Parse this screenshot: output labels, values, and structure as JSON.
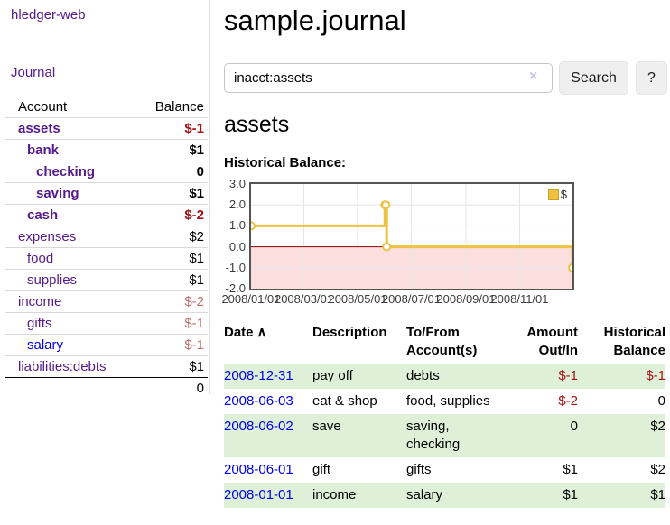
{
  "colors": {
    "accent_purple": "#551a8b",
    "link_blue": "#0000ee",
    "negative_red": "#a31515",
    "negative_dim_red": "#c26e6e",
    "row_stripe_green": "#dff0d8",
    "chart_line_gold": "#edc240",
    "chart_below_zero_fill": "#fbdfdf",
    "chart_zero_line": "#8b0000"
  },
  "sidebar": {
    "brand": "hledger-web",
    "journal_link": "Journal",
    "table_header": {
      "account": "Account",
      "balance": "Balance"
    },
    "accounts": [
      {
        "name": "assets",
        "balance": "$-1",
        "depth": 1
      },
      {
        "name": "bank",
        "balance": "$1",
        "depth": 2
      },
      {
        "name": "checking",
        "balance": "0",
        "depth": 3
      },
      {
        "name": "saving",
        "balance": "$1",
        "depth": 3
      },
      {
        "name": "cash",
        "balance": "$-2",
        "depth": 2
      },
      {
        "name": "expenses",
        "balance": "$2",
        "depth": 1
      },
      {
        "name": "food",
        "balance": "$1",
        "depth": 2
      },
      {
        "name": "supplies",
        "balance": "$1",
        "depth": 2
      },
      {
        "name": "income",
        "balance": "$-2",
        "depth": 1
      },
      {
        "name": "gifts",
        "balance": "$-1",
        "depth": 2
      },
      {
        "name": "salary",
        "balance": "$-1",
        "depth": 2
      },
      {
        "name": "liabilities:debts",
        "balance": "$1",
        "depth": 1
      }
    ],
    "total": "0"
  },
  "header": {
    "title": "sample.journal"
  },
  "search": {
    "value": "inacct:assets",
    "clear_icon": "×",
    "button_label": "Search",
    "help_label": "?"
  },
  "account_page": {
    "heading": "assets",
    "chart_title": "Historical Balance:"
  },
  "chart_data": {
    "type": "line",
    "title": "Historical Balance:",
    "step": true,
    "x_axis": {
      "range_days": [
        0,
        365
      ],
      "ticks": [
        {
          "label": "2008/01/01",
          "day": 0
        },
        {
          "label": "2008/03/01",
          "day": 60
        },
        {
          "label": "2008/05/01",
          "day": 121
        },
        {
          "label": "2008/07/01",
          "day": 182
        },
        {
          "label": "2008/09/01",
          "day": 244
        },
        {
          "label": "2008/11/01",
          "day": 305
        }
      ]
    },
    "y_axis": {
      "range": [
        -2,
        3
      ],
      "ticks": [
        3.0,
        2.0,
        1.0,
        0.0,
        -1.0,
        -2.0
      ]
    },
    "series": [
      {
        "name": "$",
        "color": "#edc240",
        "points": [
          {
            "date": "2008-01-01",
            "day": 0,
            "value": 1
          },
          {
            "date": "2008-06-01",
            "day": 152,
            "value": 2
          },
          {
            "date": "2008-06-02",
            "day": 153,
            "value": 2
          },
          {
            "date": "2008-06-03",
            "day": 154,
            "value": 0
          },
          {
            "date": "2008-12-31",
            "day": 365,
            "value": -1
          }
        ]
      }
    ],
    "markings": {
      "below_zero_fill": "#fbdfdf",
      "zero_line_color": "#8b0000"
    },
    "legend_position": "top-right",
    "grid": true
  },
  "register": {
    "headers": {
      "date": "Date",
      "sort_indicator": "∧",
      "description": "Description",
      "accounts": "To/From Account(s)",
      "amount": "Amount Out/In",
      "balance": "Historical Balance"
    },
    "rows": [
      {
        "date": "2008-12-31",
        "description": "pay off",
        "accounts": "debts",
        "amount": "$-1",
        "balance": "$-1"
      },
      {
        "date": "2008-06-03",
        "description": "eat & shop",
        "accounts": "food, supplies",
        "amount": "$-2",
        "balance": "0"
      },
      {
        "date": "2008-06-02",
        "description": "save",
        "accounts": "saving, checking",
        "amount": "0",
        "balance": "$2"
      },
      {
        "date": "2008-06-01",
        "description": "gift",
        "accounts": "gifts",
        "amount": "$1",
        "balance": "$2"
      },
      {
        "date": "2008-01-01",
        "description": "income",
        "accounts": "salary",
        "amount": "$1",
        "balance": "$1"
      }
    ]
  }
}
